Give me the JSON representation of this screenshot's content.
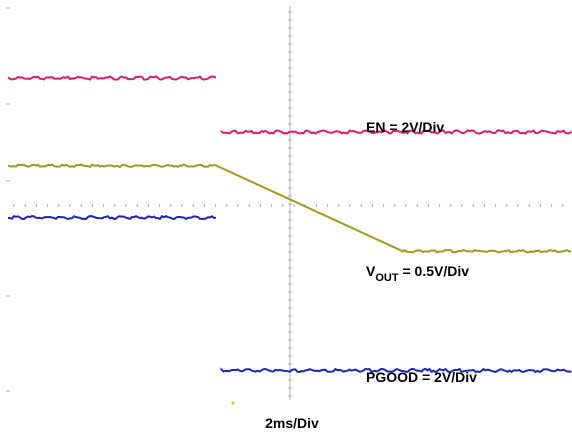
{
  "chart_data": {
    "type": "line",
    "xlabel": "2ms/Div",
    "x_unit": "ms",
    "x": [
      0,
      7.5,
      12.5,
      20
    ],
    "series": [
      {
        "name": "EN = 2V/Div",
        "label_main": "EN = 2V/Div",
        "color": "#d4206e",
        "values": [
          2.6,
          1.4,
          1.4,
          1.4
        ]
      },
      {
        "name": "VOUT = 0.5V/Div",
        "label_main": "V",
        "label_sub": "OUT",
        "label_tail": " = 0.5V/Div",
        "color": "#a09a20",
        "values": [
          0.65,
          0.65,
          -1.25,
          -1.25
        ]
      },
      {
        "name": "PGOOD = 2V/Div",
        "label_main": "PGOOD = 2V/Div",
        "color": "#1a2ab0",
        "values": [
          -0.5,
          -0.5,
          -3.9,
          -3.9
        ]
      }
    ],
    "step_at": 7.5,
    "ramp": {
      "start": 7.5,
      "end": 14
    },
    "grid": "center crosshair with minor ticks",
    "legend_placement": "right, next to each trace"
  }
}
